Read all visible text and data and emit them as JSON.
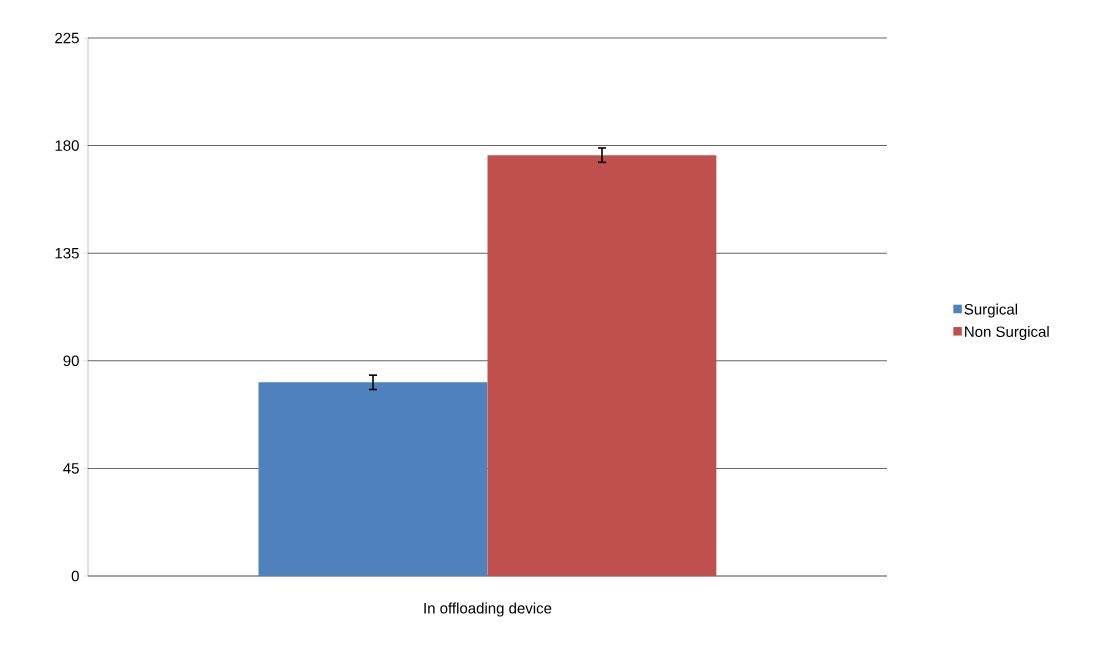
{
  "chart_data": {
    "type": "bar",
    "categories": [
      "In offloading device"
    ],
    "series": [
      {
        "name": "Surgical",
        "color": "#4f81bd",
        "values": [
          81
        ],
        "errors": [
          3
        ]
      },
      {
        "name": "Non Surgical",
        "color": "#c0504d",
        "values": [
          176
        ],
        "errors": [
          3
        ]
      }
    ],
    "ylim": [
      0,
      225
    ],
    "yticks": [
      0,
      45,
      90,
      135,
      180,
      225
    ],
    "grid": "y",
    "legend": "right"
  }
}
